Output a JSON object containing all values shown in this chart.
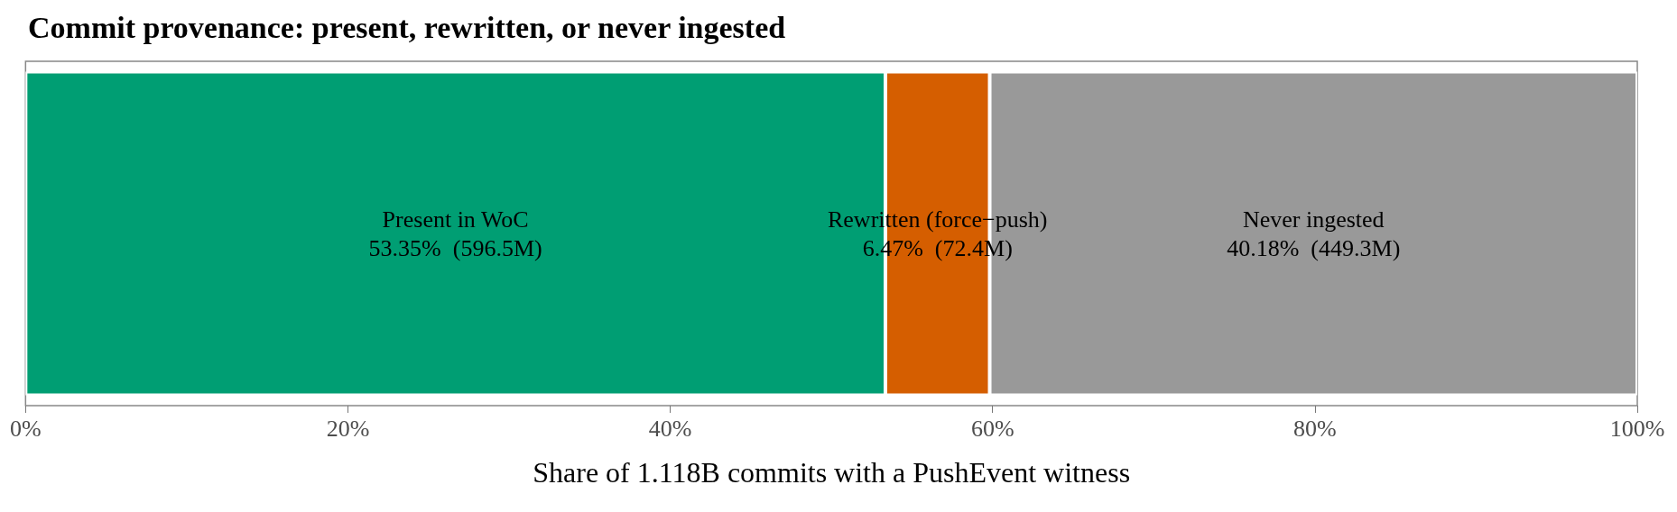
{
  "chart_data": {
    "type": "bar",
    "orientation": "horizontal",
    "stacked": true,
    "title": "Commit provenance: present, rewritten, or never ingested",
    "xlabel": "Share of 1.118B commits with a PushEvent witness",
    "categories": [
      null
    ],
    "series": [
      {
        "name": "Present in WoC",
        "color": "#009e73",
        "values": [
          53.35
        ],
        "value_labels": [
          "53.35%  (596.5M)"
        ]
      },
      {
        "name": "Rewritten (force−push)",
        "color": "#d55e00",
        "values": [
          6.47
        ],
        "value_labels": [
          "6.47%  (72.4M)"
        ]
      },
      {
        "name": "Never ingested",
        "color": "#999999",
        "values": [
          40.18
        ],
        "value_labels": [
          "40.18%  (449.3M)"
        ]
      }
    ],
    "xlim": [
      0,
      100
    ],
    "xticks": [
      {
        "value": 0,
        "label": "0%"
      },
      {
        "value": 20,
        "label": "20%"
      },
      {
        "value": 40,
        "label": "40%"
      },
      {
        "value": 60,
        "label": "60%"
      },
      {
        "value": 80,
        "label": "80%"
      },
      {
        "value": 100,
        "label": "100%"
      }
    ],
    "grid": false,
    "legend": false
  }
}
